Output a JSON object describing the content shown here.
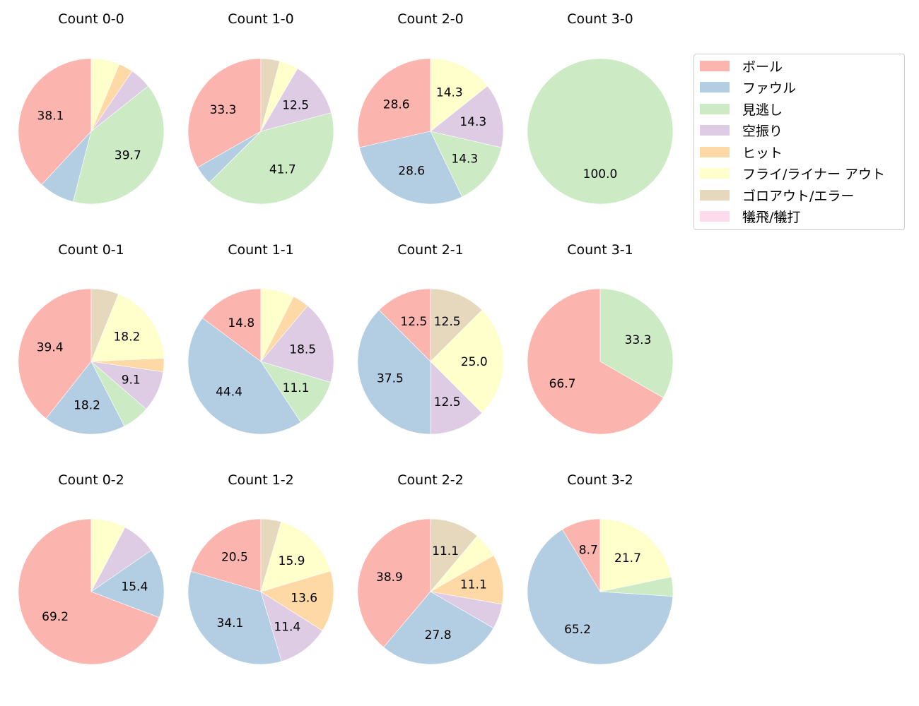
{
  "chart_data": {
    "type": "pie",
    "legend": {
      "position": "upper right",
      "entries": [
        "ボール",
        "ファウル",
        "見逃し",
        "空振り",
        "ヒット",
        "フライ/ライナー アウト",
        "ゴロアウト/エラー",
        "犠飛/犠打"
      ],
      "colors": [
        "#fbb4ae",
        "#b3cde3",
        "#ccebc5",
        "#decbe4",
        "#fed9a6",
        "#ffffcc",
        "#e5d8bd",
        "#fddaec"
      ]
    },
    "charts": [
      {
        "title": "Count 0-0",
        "values": [
          38.1,
          7.9,
          39.7,
          4.8,
          3.2,
          6.3,
          0,
          0
        ],
        "labels": [
          "38.1",
          "",
          "39.7",
          "",
          "",
          "",
          "",
          ""
        ]
      },
      {
        "title": "Count 1-0",
        "values": [
          33.3,
          4.2,
          41.7,
          12.5,
          0,
          4.2,
          4.2,
          0
        ],
        "labels": [
          "33.3",
          "",
          "41.7",
          "12.5",
          "",
          "",
          "",
          ""
        ]
      },
      {
        "title": "Count 2-0",
        "values": [
          28.6,
          28.6,
          14.3,
          14.3,
          0,
          14.3,
          0,
          0
        ],
        "labels": [
          "28.6",
          "28.6",
          "14.3",
          "14.3",
          "",
          "14.3",
          "",
          ""
        ]
      },
      {
        "title": "Count 3-0",
        "values": [
          0,
          0,
          100.0,
          0,
          0,
          0,
          0,
          0
        ],
        "labels": [
          "",
          "",
          "100.0",
          "",
          "",
          "",
          "",
          ""
        ]
      },
      {
        "title": "Count 0-1",
        "values": [
          39.4,
          18.2,
          6.1,
          9.1,
          3.0,
          18.2,
          6.1,
          0
        ],
        "labels": [
          "39.4",
          "18.2",
          "",
          "9.1",
          "",
          "18.2",
          "",
          ""
        ]
      },
      {
        "title": "Count 1-1",
        "values": [
          14.8,
          44.4,
          11.1,
          18.5,
          3.7,
          7.4,
          0,
          0
        ],
        "labels": [
          "14.8",
          "44.4",
          "11.1",
          "18.5",
          "",
          "",
          "",
          ""
        ]
      },
      {
        "title": "Count 2-1",
        "values": [
          12.5,
          37.5,
          0,
          12.5,
          0,
          25.0,
          12.5,
          0
        ],
        "labels": [
          "12.5",
          "37.5",
          "",
          "12.5",
          "",
          "25.0",
          "12.5",
          ""
        ]
      },
      {
        "title": "Count 3-1",
        "values": [
          66.7,
          0,
          33.3,
          0,
          0,
          0,
          0,
          0
        ],
        "labels": [
          "66.7",
          "",
          "33.3",
          "",
          "",
          "",
          "",
          ""
        ]
      },
      {
        "title": "Count 0-2",
        "values": [
          69.2,
          15.4,
          0,
          7.7,
          0,
          7.7,
          0,
          0
        ],
        "labels": [
          "69.2",
          "15.4",
          "",
          "",
          "",
          "",
          "",
          ""
        ]
      },
      {
        "title": "Count 1-2",
        "values": [
          20.5,
          34.1,
          0,
          11.4,
          13.6,
          15.9,
          4.5,
          0
        ],
        "labels": [
          "20.5",
          "34.1",
          "",
          "11.4",
          "13.6",
          "15.9",
          "",
          ""
        ]
      },
      {
        "title": "Count 2-2",
        "values": [
          38.9,
          27.8,
          0,
          5.6,
          11.1,
          5.6,
          11.1,
          0
        ],
        "labels": [
          "38.9",
          "27.8",
          "",
          "",
          "11.1",
          "",
          "11.1",
          ""
        ]
      },
      {
        "title": "Count 3-2",
        "values": [
          8.7,
          65.2,
          4.3,
          0,
          0,
          21.7,
          0,
          0
        ],
        "labels": [
          "8.7",
          "65.2",
          "",
          "",
          "",
          "21.7",
          "",
          ""
        ]
      }
    ]
  }
}
